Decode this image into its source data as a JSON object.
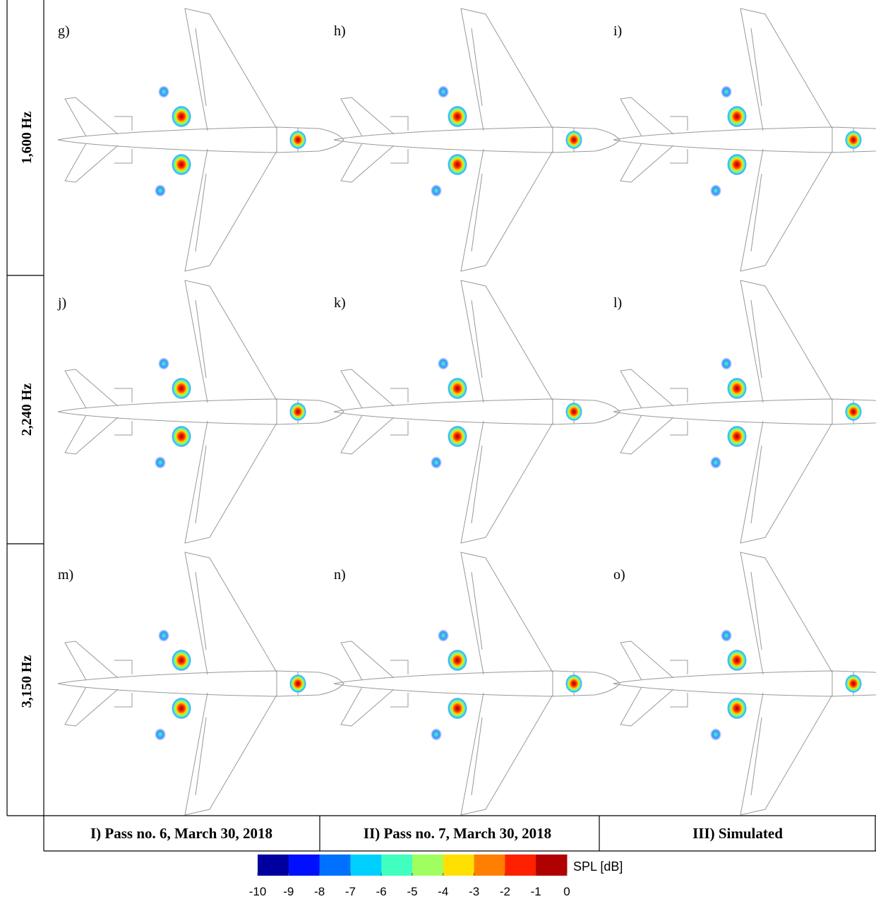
{
  "rows": [
    {
      "label": "1,600 Hz",
      "panels": [
        "g)",
        "h)",
        "i)"
      ]
    },
    {
      "label": "2,240 Hz",
      "panels": [
        "j)",
        "k)",
        "l)"
      ]
    },
    {
      "label": "3,150 Hz",
      "panels": [
        "m)",
        "n)",
        "o)"
      ]
    }
  ],
  "columns": [
    "I) Pass no. 6, March 30, 2018",
    "II) Pass no. 7, March 30, 2018",
    "III) Simulated"
  ],
  "colorbar": {
    "label": "SPL [dB]",
    "lim": [
      -10,
      0
    ],
    "ticks": [
      -10,
      -9,
      -8,
      -7,
      -6,
      -5,
      -4,
      -3,
      -2,
      -1,
      0
    ],
    "colors": [
      "#00009f",
      "#0010ff",
      "#0070ff",
      "#00d0ff",
      "#40ffbf",
      "#a0ff60",
      "#ffe000",
      "#ff8000",
      "#ff2000",
      "#b00000"
    ]
  }
}
